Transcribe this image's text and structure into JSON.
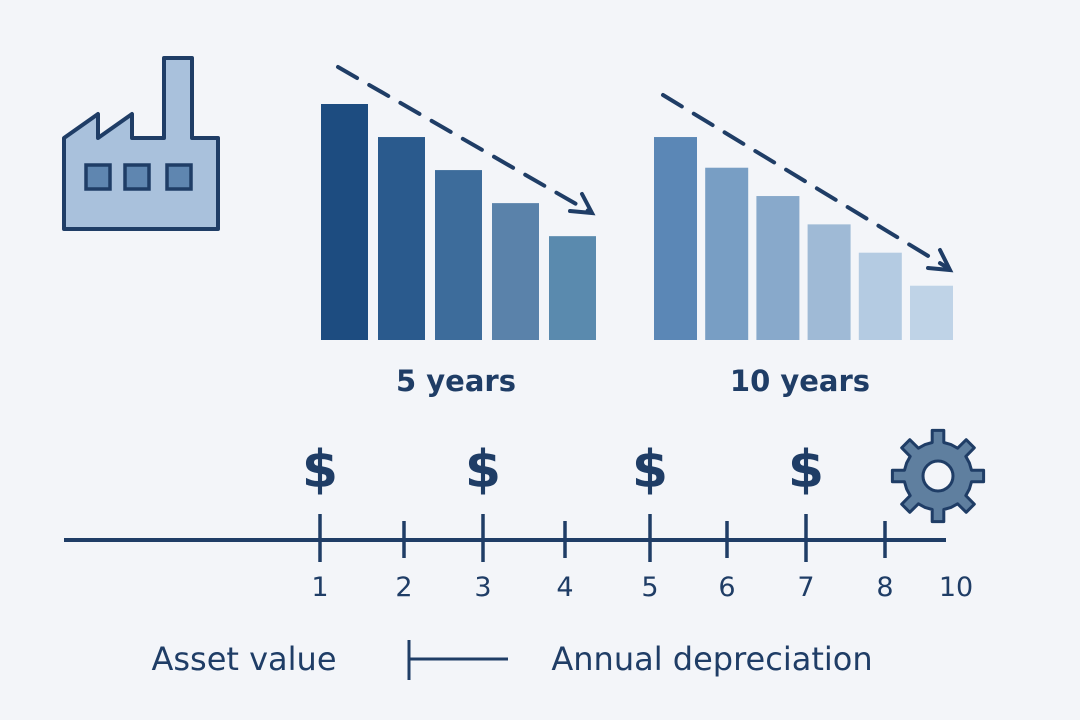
{
  "colors": {
    "background": "#f3f5f9",
    "ink": "#1f3d66",
    "icon_fill": "#a9c1dc",
    "gear_fill": "#5f7f9f"
  },
  "icons": [
    "factory-icon",
    "dollar-icon",
    "gear-icon",
    "trend-arrow-icon"
  ],
  "chart_data": [
    {
      "type": "bar",
      "title": "5 years",
      "values": [
        100,
        86,
        72,
        58,
        44
      ],
      "colors": [
        "#1d4c80",
        "#2a5a8d",
        "#3d6c9b",
        "#5a82aa",
        "#5a8aae"
      ]
    },
    {
      "type": "bar",
      "title": "10 years",
      "values": [
        86,
        73,
        61,
        49,
        37,
        23
      ],
      "colors": [
        "#5b87b6",
        "#789ec4",
        "#88a9cb",
        "#9fbad6",
        "#b4cbe2",
        "#bfd3e7"
      ]
    }
  ],
  "timeline": {
    "ticks": [
      "1",
      "2",
      "3",
      "4",
      "5",
      "6",
      "7",
      "8",
      "10"
    ],
    "dollar_symbol": "$",
    "dollar_at": [
      "1",
      "3",
      "5",
      "7"
    ]
  },
  "legend": {
    "left_label": "Asset value",
    "right_label": "Annual depreciation"
  }
}
